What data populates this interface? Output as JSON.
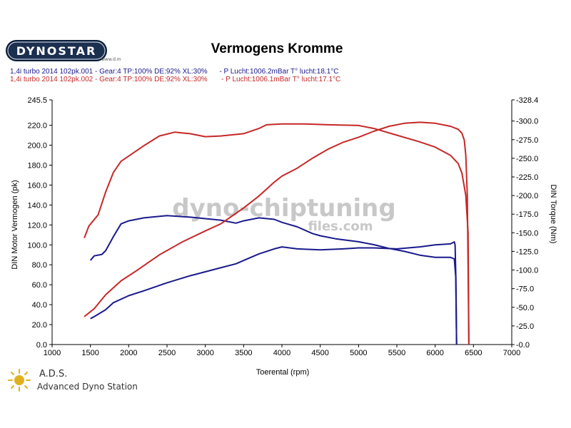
{
  "header": {
    "logo_text": "DYNOSTAR",
    "logo_sub": "www.d.m",
    "title": "Vermogens Kromme"
  },
  "runs": [
    "1,4i turbo 2014 102pk.001 - Gear:4 TP:100% DE:92% XL:30%      - P Lucht:1006.2mBar T° lucht:18.1°C",
    "1,4i turbo 2014 102pk.002 - Gear:4 TP:100% DE:92% XL:30%       - P Lucht:1006.1mBar T° lucht:17.1°C"
  ],
  "watermark": {
    "line1": "dyno-chiptuning",
    "line2": "files.com"
  },
  "footer": {
    "short": "A.D.S.",
    "full": "Advanced Dyno Station"
  },
  "colors": {
    "stock": "#1a1a8c",
    "tuned": "#c62828",
    "watermark": "#c8c8c8"
  },
  "chart_data": {
    "type": "line",
    "title": "Vermogens Kromme",
    "xlabel": "Toerental (rpm)",
    "ylabel": "DIN Motor Vermogen (pk)",
    "y2label": "DIN Torque (Nm)",
    "xlim": [
      1000,
      7000
    ],
    "ylim": [
      0.0,
      245.5
    ],
    "y2lim": [
      0.0,
      328.4
    ],
    "x_ticks": [
      1000,
      1500,
      2000,
      2500,
      3000,
      3500,
      4000,
      4500,
      5000,
      5500,
      6000,
      6500,
      7000
    ],
    "y_ticks": [
      "0.0",
      "20.0",
      "40.0",
      "60.0",
      "80.0",
      "100.0",
      "120.0",
      "140.0",
      "160.0",
      "180.0",
      "200.0",
      "220.0",
      "245.5"
    ],
    "y2_ticks": [
      "-0.0",
      "-25.0",
      "-50.0",
      "-75.0",
      "-100.0",
      "-125.0",
      "-150.0",
      "-175.0",
      "-200.0",
      "-225.0",
      "-250.0",
      "-275.0",
      "-300.0",
      "-328.4"
    ],
    "grid": false,
    "series": [
      {
        "name": "1,4i turbo 2014 102pk.001",
        "quantity": "power",
        "axis": "left",
        "color": "#1a1a8c",
        "points": [
          [
            1500,
            26
          ],
          [
            1550,
            28
          ],
          [
            1700,
            35
          ],
          [
            1800,
            42
          ],
          [
            2000,
            49
          ],
          [
            2200,
            54
          ],
          [
            2500,
            62
          ],
          [
            2800,
            69
          ],
          [
            3000,
            73
          ],
          [
            3200,
            77
          ],
          [
            3400,
            81
          ],
          [
            3550,
            86
          ],
          [
            3700,
            91
          ],
          [
            3900,
            96
          ],
          [
            4000,
            98
          ],
          [
            4200,
            96
          ],
          [
            4500,
            95
          ],
          [
            4800,
            96
          ],
          [
            5000,
            97
          ],
          [
            5200,
            97
          ],
          [
            5500,
            96
          ],
          [
            5800,
            98
          ],
          [
            6000,
            100
          ],
          [
            6200,
            101
          ],
          [
            6250,
            103
          ],
          [
            6260,
            100
          ],
          [
            6270,
            70
          ],
          [
            6280,
            0
          ]
        ]
      },
      {
        "name": "1,4i turbo 2014 102pk.001",
        "quantity": "torque",
        "axis": "right",
        "color": "#1a1a8c",
        "points": [
          [
            1500,
            113
          ],
          [
            1550,
            119
          ],
          [
            1650,
            121
          ],
          [
            1700,
            126
          ],
          [
            1800,
            145
          ],
          [
            1900,
            162
          ],
          [
            2000,
            166
          ],
          [
            2200,
            170
          ],
          [
            2500,
            173
          ],
          [
            2800,
            171
          ],
          [
            3000,
            169
          ],
          [
            3200,
            167
          ],
          [
            3400,
            163
          ],
          [
            3500,
            166
          ],
          [
            3700,
            170
          ],
          [
            3900,
            168
          ],
          [
            4000,
            164
          ],
          [
            4200,
            158
          ],
          [
            4400,
            149
          ],
          [
            4500,
            146
          ],
          [
            4700,
            142
          ],
          [
            5000,
            138
          ],
          [
            5200,
            134
          ],
          [
            5400,
            129
          ],
          [
            5600,
            125
          ],
          [
            5800,
            120
          ],
          [
            6000,
            117
          ],
          [
            6200,
            117
          ],
          [
            6250,
            115
          ],
          [
            6270,
            90
          ],
          [
            6280,
            0
          ]
        ]
      },
      {
        "name": "1,4i turbo 2014 102pk.002",
        "quantity": "power",
        "axis": "left",
        "color": "#c62828",
        "points": [
          [
            1420,
            28
          ],
          [
            1550,
            36
          ],
          [
            1700,
            50
          ],
          [
            1900,
            64
          ],
          [
            2100,
            74
          ],
          [
            2400,
            90
          ],
          [
            2700,
            103
          ],
          [
            3000,
            114
          ],
          [
            3200,
            121
          ],
          [
            3500,
            137
          ],
          [
            3700,
            149
          ],
          [
            3900,
            163
          ],
          [
            4000,
            169
          ],
          [
            4200,
            177
          ],
          [
            4400,
            187
          ],
          [
            4600,
            196
          ],
          [
            4800,
            203
          ],
          [
            5000,
            208
          ],
          [
            5200,
            214
          ],
          [
            5400,
            219
          ],
          [
            5600,
            222
          ],
          [
            5800,
            223
          ],
          [
            6000,
            222
          ],
          [
            6200,
            219
          ],
          [
            6300,
            216
          ],
          [
            6350,
            212
          ],
          [
            6380,
            205
          ],
          [
            6400,
            190
          ],
          [
            6420,
            150
          ],
          [
            6430,
            80
          ],
          [
            6440,
            0
          ]
        ]
      },
      {
        "name": "1,4i turbo 2014 102pk.002",
        "quantity": "torque",
        "axis": "right",
        "color": "#c62828",
        "points": [
          [
            1420,
            143
          ],
          [
            1480,
            159
          ],
          [
            1600,
            174
          ],
          [
            1700,
            205
          ],
          [
            1800,
            231
          ],
          [
            1900,
            246
          ],
          [
            2000,
            253
          ],
          [
            2200,
            267
          ],
          [
            2400,
            280
          ],
          [
            2600,
            285
          ],
          [
            2800,
            283
          ],
          [
            3000,
            279
          ],
          [
            3200,
            280
          ],
          [
            3500,
            283
          ],
          [
            3700,
            290
          ],
          [
            3800,
            295
          ],
          [
            4000,
            296
          ],
          [
            4300,
            296
          ],
          [
            4600,
            295
          ],
          [
            5000,
            294
          ],
          [
            5200,
            290
          ],
          [
            5500,
            281
          ],
          [
            5800,
            272
          ],
          [
            6000,
            265
          ],
          [
            6200,
            254
          ],
          [
            6300,
            243
          ],
          [
            6350,
            230
          ],
          [
            6400,
            200
          ],
          [
            6430,
            150
          ],
          [
            6440,
            0
          ]
        ]
      }
    ]
  }
}
